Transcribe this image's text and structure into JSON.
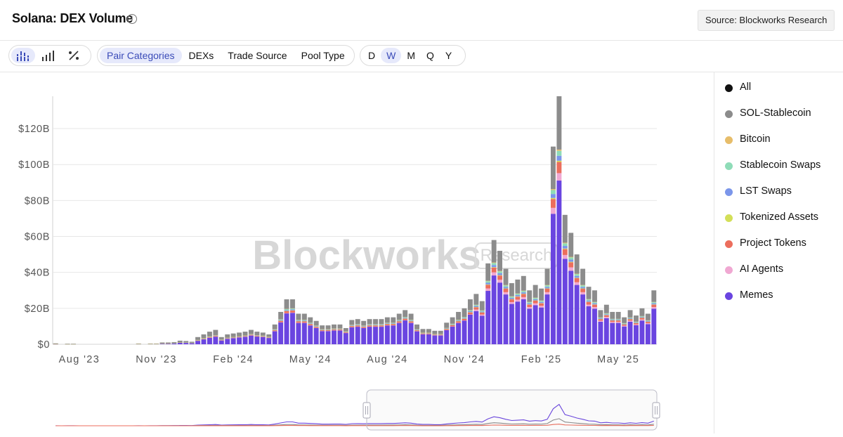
{
  "header": {
    "title": "Solana: DEX Volume",
    "info_icon": "info-icon",
    "source": "Source: Blockworks Research"
  },
  "toolbar": {
    "chart_type_icons": [
      "stacked-bar-chart-icon",
      "bar-chart-icon",
      "percent-icon"
    ],
    "categories": [
      "Pair Categories",
      "DEXs",
      "Trade Source",
      "Pool Type"
    ],
    "active_category": "Pair Categories",
    "intervals": [
      "D",
      "W",
      "M",
      "Q",
      "Y"
    ],
    "active_interval": "W"
  },
  "watermark": {
    "brand": "Blockworks",
    "badge": "Research"
  },
  "legend": [
    {
      "label": "All",
      "color": "#111111"
    },
    {
      "label": "SOL-Stablecoin",
      "color": "#8c8c8c"
    },
    {
      "label": "Bitcoin",
      "color": "#e7bd6a"
    },
    {
      "label": "Stablecoin Swaps",
      "color": "#8fdcb8"
    },
    {
      "label": "LST Swaps",
      "color": "#7b96ea"
    },
    {
      "label": "Tokenized Assets",
      "color": "#d3df58"
    },
    {
      "label": "Project Tokens",
      "color": "#ec6e5d"
    },
    {
      "label": "AI Agents",
      "color": "#f0a8d2"
    },
    {
      "label": "Memes",
      "color": "#6a45e0"
    }
  ],
  "chart_data": {
    "type": "bar",
    "stacked": true,
    "title": "Solana: DEX Volume",
    "xlabel": "",
    "ylabel": "",
    "ylim": [
      0,
      138
    ],
    "y_ticks": [
      0,
      20,
      40,
      60,
      80,
      100,
      120
    ],
    "y_tick_labels": [
      "$0",
      "$20B",
      "$40B",
      "$60B",
      "$80B",
      "$100B",
      "$120B"
    ],
    "x_ticks": [
      {
        "label": "Aug '23",
        "week": 4
      },
      {
        "label": "Nov '23",
        "week": 17
      },
      {
        "label": "Feb '24",
        "week": 30
      },
      {
        "label": "May '24",
        "week": 43
      },
      {
        "label": "Aug '24",
        "week": 56
      },
      {
        "label": "Nov '24",
        "week": 69
      },
      {
        "label": "Feb '25",
        "week": 82
      },
      {
        "label": "May '25",
        "week": 95
      }
    ],
    "series_names": [
      "Memes",
      "AI Agents",
      "Project Tokens",
      "Tokenized Assets",
      "LST Swaps",
      "Stablecoin Swaps",
      "Bitcoin",
      "SOL-Stablecoin"
    ],
    "unit": "USD billions (weekly)",
    "weekly_totals": [
      0.5,
      0,
      0.3,
      0.3,
      0,
      0,
      0,
      0,
      0,
      0,
      0,
      0,
      0,
      0,
      0.4,
      0,
      0.4,
      0.4,
      1,
      1,
      1.2,
      2,
      1.8,
      1.4,
      4,
      5.5,
      7,
      8,
      4,
      5.5,
      6,
      6.5,
      7,
      8,
      7,
      6.5,
      5.5,
      11,
      18,
      25,
      25,
      17,
      17,
      15,
      13,
      10.5,
      10.5,
      11,
      11,
      9,
      13.5,
      14,
      13,
      14,
      14,
      14,
      15,
      15,
      17,
      19,
      17,
      11,
      8.5,
      8.5,
      7.5,
      7.5,
      12,
      15,
      18,
      20,
      25,
      28,
      24,
      45,
      58,
      52,
      42,
      34,
      36,
      38,
      30,
      33,
      31,
      42,
      110,
      138,
      72,
      62,
      50,
      42,
      32,
      30,
      19,
      22,
      18,
      18,
      15,
      19,
      16,
      20,
      17,
      30
    ]
  },
  "navigator": {
    "label": "range-navigator"
  }
}
